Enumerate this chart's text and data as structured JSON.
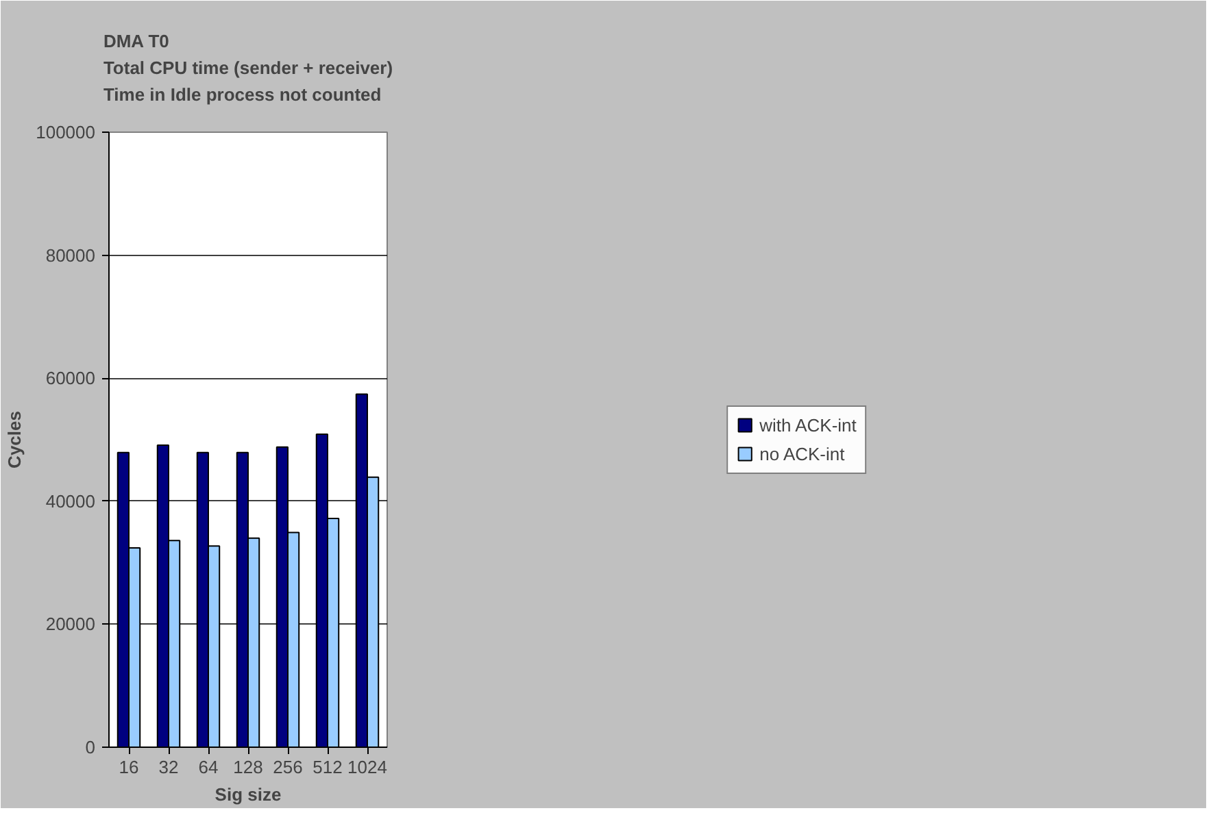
{
  "chart_data": {
    "type": "bar",
    "title": "DMA T0\nTotal CPU time (sender + receiver)\nTime in Idle process not counted",
    "xlabel": "Sig size",
    "ylabel": "Cycles",
    "categories": [
      "16",
      "32",
      "64",
      "128",
      "256",
      "512",
      "1024"
    ],
    "series": [
      {
        "name": "with ACK-int",
        "color": "#000080",
        "values": [
          47900,
          49100,
          47900,
          47900,
          48800,
          50900,
          57400
        ]
      },
      {
        "name": "no ACK-int",
        "color": "#99ccff",
        "values": [
          32400,
          33600,
          32700,
          34000,
          34900,
          37200,
          43900
        ]
      }
    ],
    "ylim": [
      0,
      100000
    ],
    "yticks": [
      0,
      20000,
      40000,
      60000,
      80000,
      100000
    ],
    "grid": "y",
    "legend": "right"
  }
}
